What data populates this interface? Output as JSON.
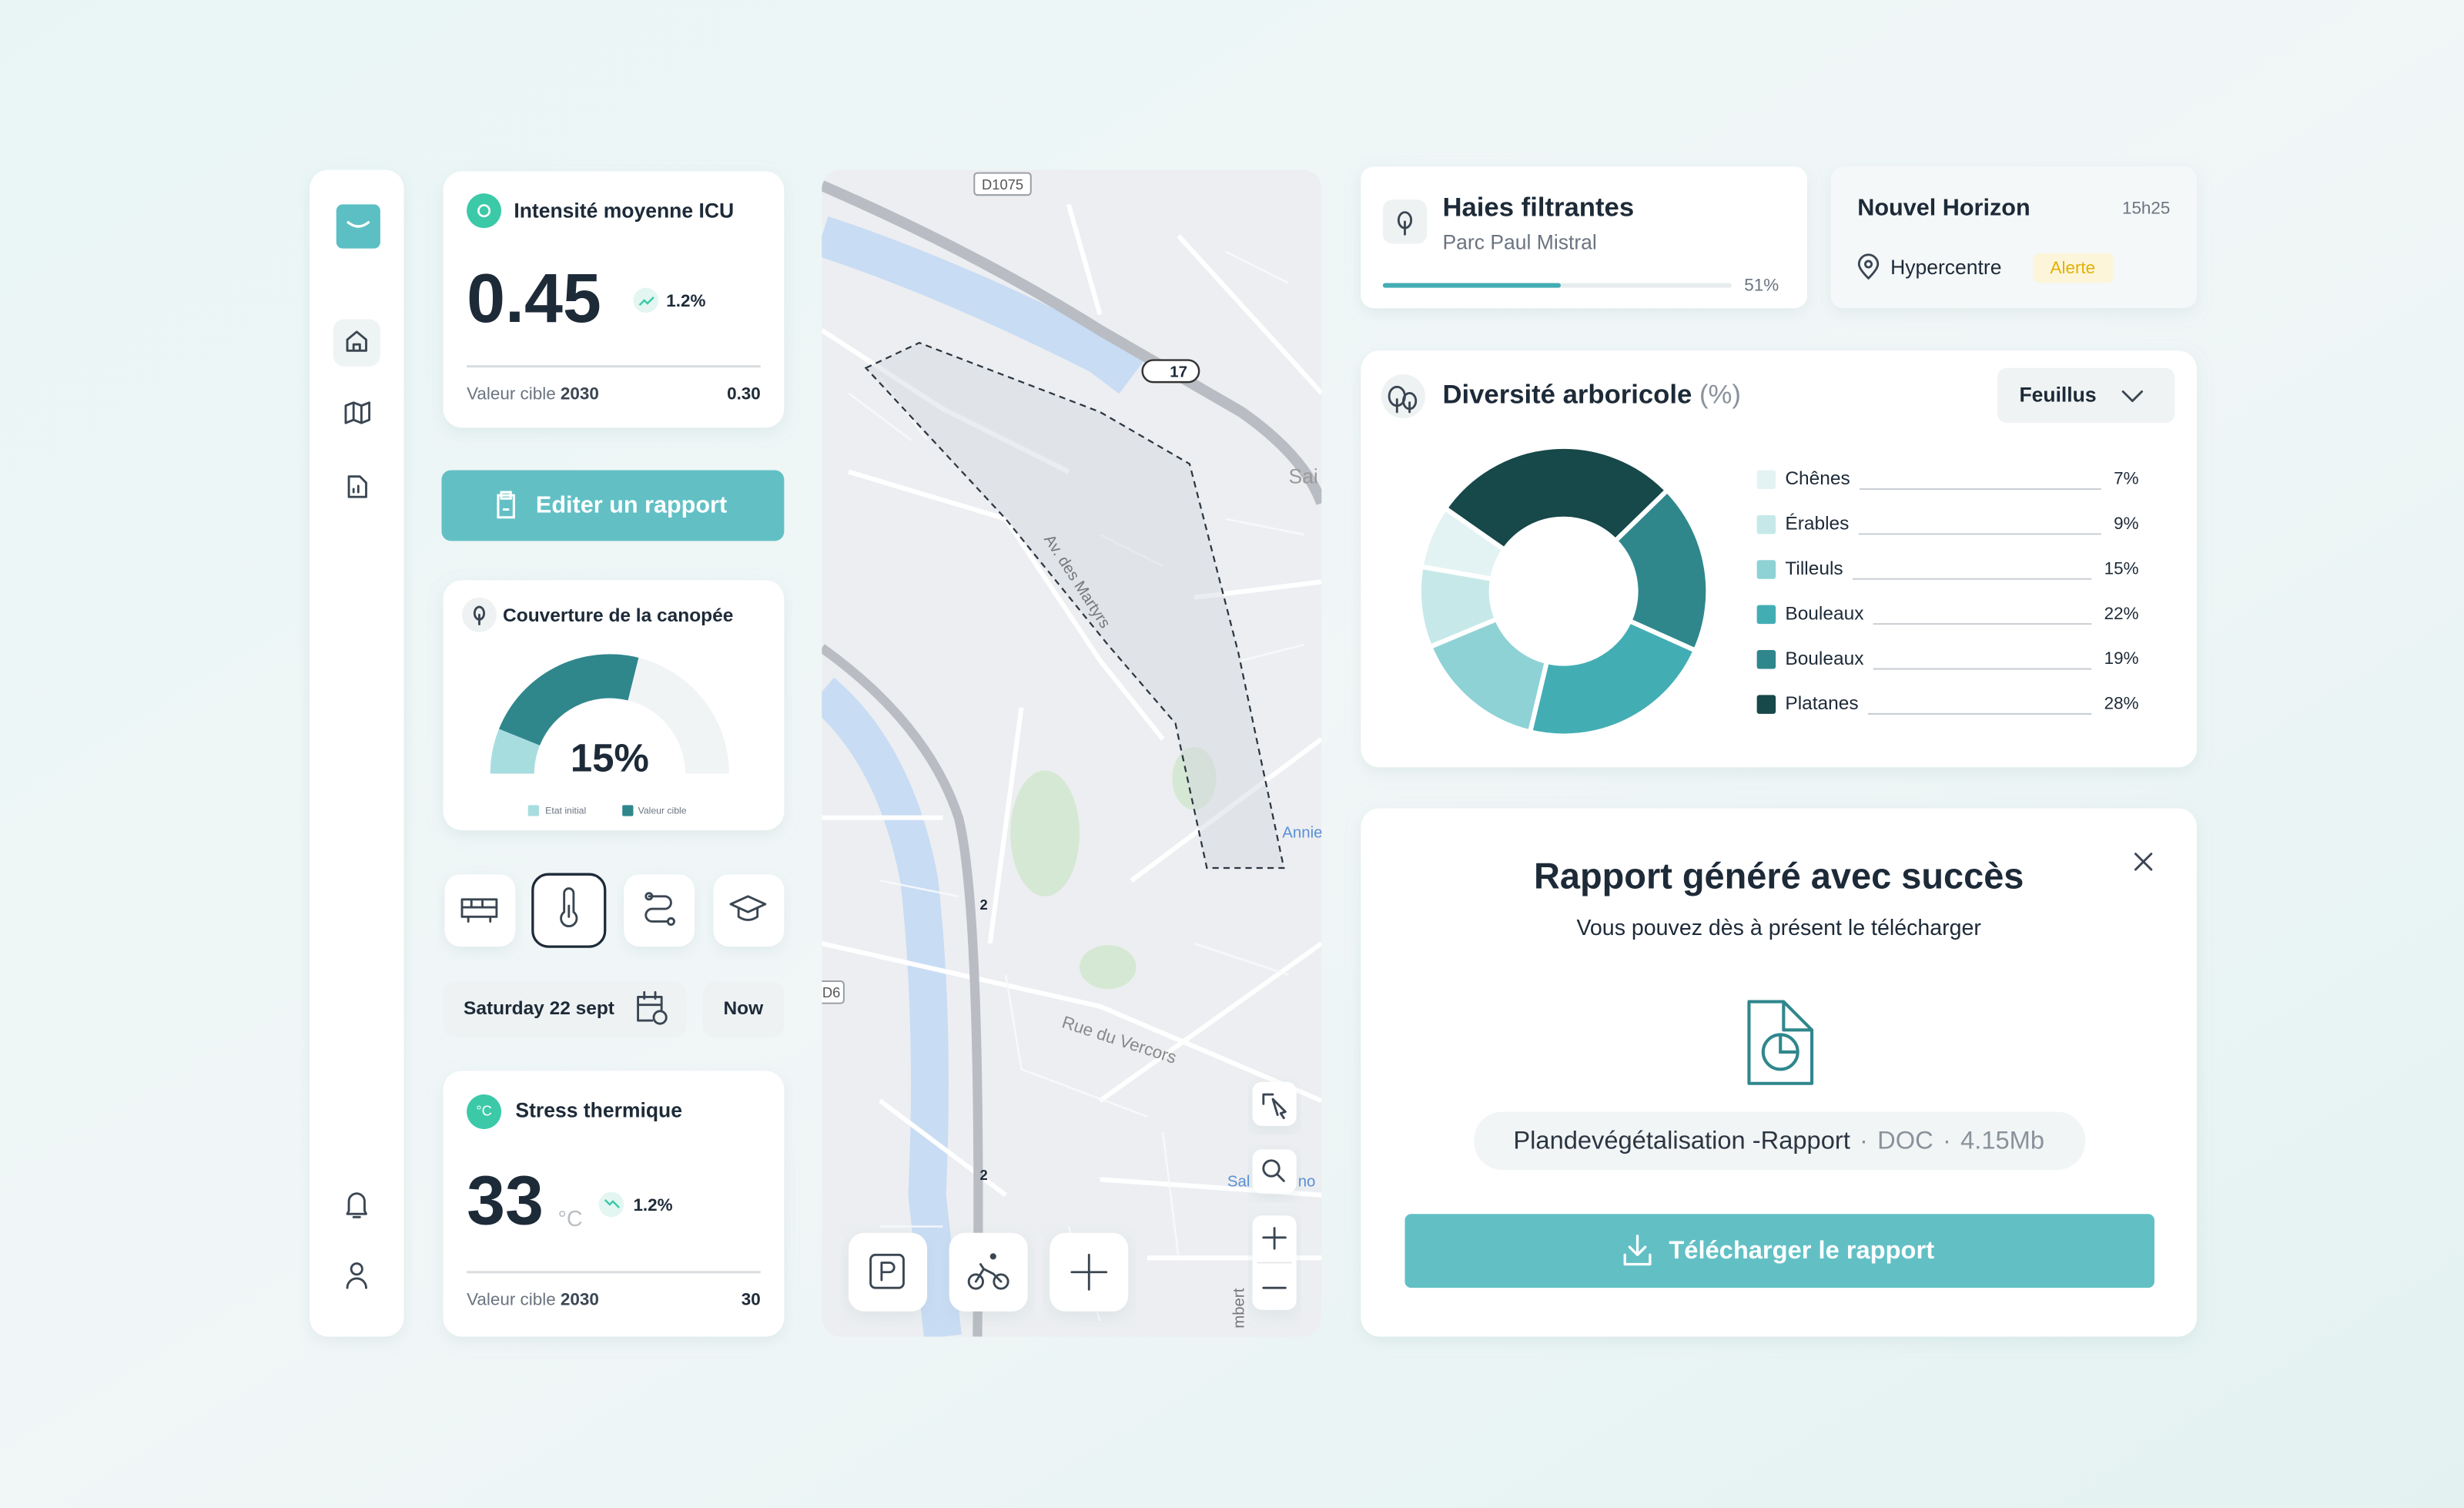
{
  "icu_card": {
    "title": "Intensité moyenne ICU",
    "value": "0.45",
    "trend": "1.2%",
    "target_label": "Valeur cible",
    "target_year": "2030",
    "target_value": "0.30"
  },
  "report_button": "Editer un rapport",
  "canopy_card": {
    "title": "Couverture de la canopée",
    "value": "15%",
    "legend": [
      "Etat initial",
      "Valeur cible"
    ]
  },
  "date_picker": {
    "date": "Saturday 22 sept",
    "now": "Now"
  },
  "thermal_card": {
    "title": "Stress thermique",
    "icon_text": "°C",
    "value": "33",
    "unit": "°C",
    "trend": "1.2%",
    "target_label": "Valeur cible",
    "target_year": "2030",
    "target_value": "30"
  },
  "map": {
    "labels": [
      "D1075",
      "17",
      "Sai",
      "Av. des Martyrs",
      "Annie",
      "Rue du Vercors",
      "2",
      "2",
      "D6",
      "Sal",
      "no",
      "mbert"
    ]
  },
  "hedges_card": {
    "title": "Haies filtrantes",
    "subtitle": "Parc Paul Mistral",
    "progress": 51,
    "progress_label": "51%"
  },
  "alert_card": {
    "title": "Nouvel Horizon",
    "time": "15h25",
    "location": "Hypercentre",
    "badge": "Alerte"
  },
  "diversity_card": {
    "title": "Diversité arboricole",
    "unit": "(%)",
    "filter": "Feuillus",
    "items": [
      {
        "name": "Chênes",
        "value": 7,
        "value_label": "7%",
        "color": "#e3f3f3"
      },
      {
        "name": "Érables",
        "value": 9,
        "value_label": "9%",
        "color": "#c6e8e9"
      },
      {
        "name": "Tilleuls",
        "value": 15,
        "value_label": "15%",
        "color": "#8ed2d5"
      },
      {
        "name": "Bouleaux",
        "value": 22,
        "value_label": "22%",
        "color": "#43adb4"
      },
      {
        "name": "Bouleaux",
        "value": 19,
        "value_label": "19%",
        "color": "#2f878c"
      },
      {
        "name": "Platanes",
        "value": 28,
        "value_label": "28%",
        "color": "#17484a"
      }
    ]
  },
  "success_dialog": {
    "title": "Rapport généré avec succès",
    "subtitle": "Vous pouvez dès à présent le télécharger",
    "file_name": "Plandevégétalisation -Rapport",
    "separator": "·",
    "file_type": "DOC",
    "file_size": "4.15Mb",
    "button": "Télécharger le rapport"
  }
}
